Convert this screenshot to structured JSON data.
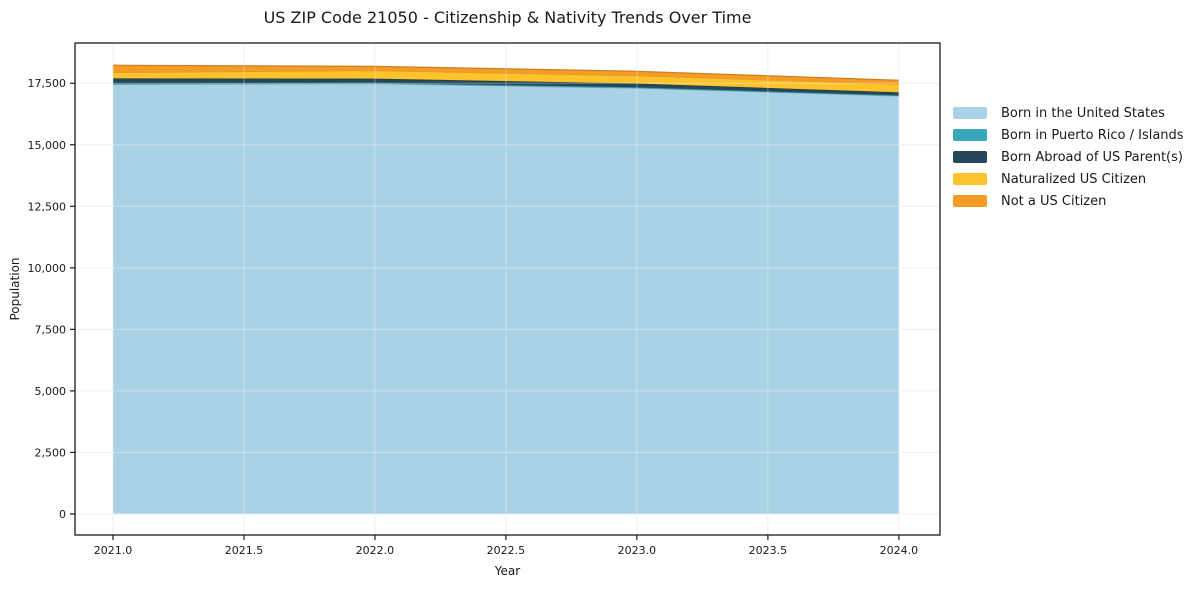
{
  "chart_data": {
    "type": "area",
    "stacked": true,
    "title": "US ZIP Code 21050 - Citizenship & Nativity Trends Over Time",
    "xlabel": "Year",
    "ylabel": "Population",
    "x": [
      2021,
      2022,
      2023,
      2024
    ],
    "series": [
      {
        "name": "Born in the United States",
        "color": "#a9d2e6",
        "values": [
          17450,
          17480,
          17300,
          16980
        ]
      },
      {
        "name": "Born in Puerto Rico / Islands",
        "color": "#38a7ba",
        "values": [
          40,
          40,
          35,
          30
        ]
      },
      {
        "name": "Born Abroad of US Parent(s)",
        "color": "#24485a",
        "values": [
          210,
          165,
          155,
          120
        ]
      },
      {
        "name": "Naturalized US Citizen",
        "color": "#fcc32d",
        "values": [
          240,
          330,
          320,
          330
        ]
      },
      {
        "name": "Not a US Citizen",
        "color": "#f79b27",
        "values": [
          290,
          170,
          175,
          160
        ]
      }
    ],
    "xticks": {
      "values": [
        2021.0,
        2021.5,
        2022.0,
        2022.5,
        2023.0,
        2023.5,
        2024.0
      ],
      "labels": [
        "2021.0",
        "2021.5",
        "2022.0",
        "2022.5",
        "2023.0",
        "2023.5",
        "2024.0"
      ]
    },
    "yticks": {
      "values": [
        0,
        2500,
        5000,
        7500,
        10000,
        12500,
        15000,
        17500
      ],
      "labels": [
        "0",
        "2,500",
        "5,000",
        "7,500",
        "10,000",
        "12,500",
        "15,000",
        "17,500"
      ]
    },
    "xlim": [
      2020.855,
      2024.157
    ],
    "ylim": [
      -856,
      19135
    ],
    "grid": true,
    "legend_position": "right-outside",
    "colors": {
      "spine": "#1a1a1a",
      "tick_label": "#1a1a1a",
      "grid_under": "#e9e9e9",
      "grid_over": "rgba(255,255,255,0.35)",
      "plot_bg": "#ffffff"
    }
  }
}
